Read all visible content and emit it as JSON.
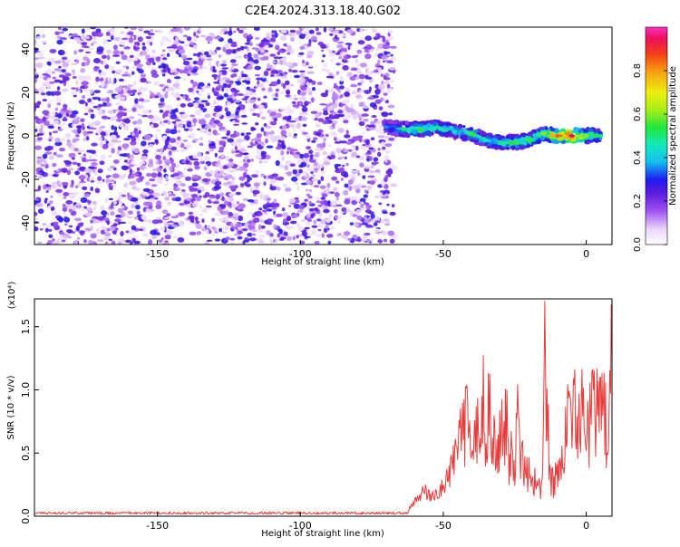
{
  "title": "C2E4.2024.313.18.40.G02",
  "chart_data": [
    {
      "type": "heatmap",
      "xlabel": "Height of straight line (km)",
      "ylabel": "Frequency (Hz)",
      "xlim": [
        -193,
        9
      ],
      "ylim": [
        -50,
        50
      ],
      "x_ticks": [
        -150,
        -100,
        -50,
        0
      ],
      "y_ticks": [
        -40,
        -20,
        0,
        20,
        40
      ],
      "noise_region_x": [
        -193,
        -67
      ],
      "noise_amplitude_range": [
        0.05,
        0.3
      ],
      "signal_band": [
        {
          "x": -70,
          "freq": 4,
          "amp": 0.35
        },
        {
          "x": -64,
          "freq": 3,
          "amp": 0.5
        },
        {
          "x": -58,
          "freq": 3,
          "amp": 0.55
        },
        {
          "x": -52,
          "freq": 4,
          "amp": 0.5
        },
        {
          "x": -46,
          "freq": 2,
          "amp": 0.45
        },
        {
          "x": -40,
          "freq": 1,
          "amp": 0.55
        },
        {
          "x": -35,
          "freq": -2,
          "amp": 0.45
        },
        {
          "x": -30,
          "freq": -3,
          "amp": 0.5
        },
        {
          "x": -25,
          "freq": -3,
          "amp": 0.55
        },
        {
          "x": -20,
          "freq": -2,
          "amp": 0.55
        },
        {
          "x": -15,
          "freq": 1,
          "amp": 0.6
        },
        {
          "x": -10,
          "freq": 0,
          "amp": 0.85
        },
        {
          "x": -5,
          "freq": 0,
          "amp": 0.95
        },
        {
          "x": 0,
          "freq": 0,
          "amp": 0.6
        },
        {
          "x": 5,
          "freq": 0,
          "amp": 0.5
        }
      ]
    },
    {
      "type": "line",
      "xlabel": "Height of straight line (km)",
      "ylabel": "SNR (10 * v/v)",
      "y_multiplier": "(x10⁴)",
      "xlim": [
        -193,
        9
      ],
      "ylim": [
        0,
        1.72
      ],
      "x_ticks": [
        -150,
        -100,
        -50,
        0
      ],
      "y_ticks": [
        0.0,
        0.5,
        1.0,
        1.5
      ],
      "y_tick_labels": [
        "0.0",
        "0.5",
        "1.0",
        "1.5"
      ],
      "series": [
        {
          "color": "#e83c3c",
          "x": [
            -193,
            -180,
            -160,
            -140,
            -120,
            -100,
            -80,
            -70,
            -65,
            -62,
            -60,
            -58,
            -56,
            -54,
            -52,
            -50,
            -48,
            -46,
            -44,
            -42,
            -40,
            -38,
            -37,
            -36,
            -35,
            -34,
            -33,
            -32,
            -31,
            -30,
            -29,
            -28,
            -27,
            -26,
            -25,
            -24,
            -23,
            -22,
            -21,
            -20,
            -19,
            -18,
            -17,
            -16,
            -15,
            -14.5,
            -14,
            -13.5,
            -13,
            -12,
            -11,
            -10,
            -9,
            -8,
            -7,
            -6,
            -5,
            -4,
            -3,
            -2,
            -1,
            0,
            1,
            2,
            3,
            4,
            5,
            6,
            7,
            8,
            9
          ],
          "y": [
            0.02,
            0.02,
            0.02,
            0.02,
            0.02,
            0.02,
            0.02,
            0.02,
            0.03,
            0.05,
            0.12,
            0.18,
            0.2,
            0.15,
            0.2,
            0.25,
            0.35,
            0.5,
            0.7,
            0.85,
            0.45,
            0.95,
            0.55,
            1.0,
            0.6,
            1.18,
            0.5,
            0.9,
            0.45,
            0.85,
            0.6,
            0.95,
            0.4,
            0.7,
            0.5,
            0.85,
            0.35,
            0.6,
            0.3,
            0.55,
            0.25,
            0.3,
            0.2,
            0.3,
            0.6,
            1.7,
            0.6,
            1.2,
            0.35,
            0.3,
            0.35,
            0.45,
            0.4,
            0.7,
            0.85,
            0.9,
            0.85,
            0.9,
            0.95,
            0.95,
            1.0,
            0.9,
            0.85,
            1.15,
            0.95,
            0.9,
            0.85,
            1.05,
            0.75,
            0.85,
            1.45
          ]
        }
      ]
    }
  ],
  "colorbar": {
    "label": "Normalized spectral amplitude",
    "range": [
      0,
      1
    ],
    "ticks": [
      0.0,
      0.2,
      0.4,
      0.6,
      0.8
    ],
    "tick_labels": [
      "0.0",
      "0.2",
      "0.4",
      "0.6",
      "0.8"
    ]
  }
}
